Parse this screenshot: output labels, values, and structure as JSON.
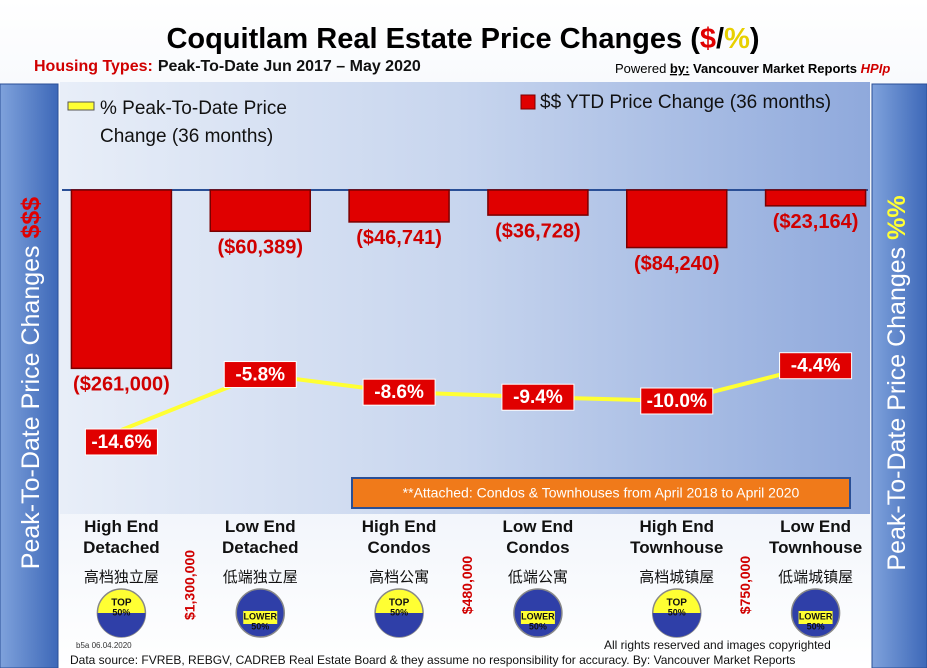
{
  "chart_data": {
    "type": "bar",
    "title_parts": [
      "Coquitlam Real Estate Price Changes (",
      "$",
      "/",
      "%",
      ")"
    ],
    "subtitle_label": "Housing Types:",
    "subtitle": "Peak-To-Date Jun 2017 – May 2020",
    "credit_parts": [
      "Powered ",
      "by:",
      " Vancouver Market Reports ",
      "HPIp"
    ],
    "y_label": {
      "text": "Peak-To-Date Price Changes ",
      "symbol": "$$$"
    },
    "y2_label": {
      "text": "Peak-To-Date  Price  Changes ",
      "symbol": "%%"
    },
    "categories": [
      "High End\nDetached",
      "Low End\nDetached",
      "High End\nCondos",
      "Low End\nCondos",
      "High End\nTownhouse",
      "Low End\nTownhouse"
    ],
    "chinese_labels": [
      "高档独立屋",
      "低端独立屋",
      "高档公寓",
      "低端公寓",
      "高档城镇屋",
      "低端城镇屋"
    ],
    "badges": [
      [
        "TOP",
        "50%"
      ],
      [
        "LOWER",
        "50%"
      ],
      [
        "TOP",
        "50%"
      ],
      [
        "LOWER",
        "50%"
      ],
      [
        "TOP",
        "50%"
      ],
      [
        "LOWER",
        "50%"
      ]
    ],
    "thresholds": [
      "$1,300,000",
      "$480,000",
      "$750,000"
    ],
    "series": [
      {
        "name": "$$ YTD Price Change (36 months)",
        "type": "bar",
        "color": "#e00000",
        "values": [
          -261000,
          -60389,
          -46741,
          -36728,
          -84240,
          -23164
        ],
        "value_labels": [
          "($261,000)",
          "($60,389)",
          "($46,741)",
          "($36,728)",
          "($84,240)",
          "($23,164)"
        ]
      },
      {
        "name": "% Peak-To-Date Price Change (36 months)",
        "type": "line",
        "axis": "y2",
        "color": "#ffff33",
        "values": [
          -14.6,
          -5.8,
          -8.6,
          -9.4,
          -10.0,
          -4.4
        ],
        "value_labels": [
          "-14.6%",
          "-5.8%",
          "-8.6%",
          "-9.4%",
          "-10.0%",
          "-4.4%"
        ]
      }
    ],
    "ylim": [
      -300000,
      0
    ],
    "y2lim": [
      -20,
      0
    ],
    "annotation": "**Attached: Condos & Townhouses from April 2018 to April 2020",
    "stamp": "b5a 06.04.2020",
    "copyright": "All rights reserved and  images copyrighted",
    "source": "Data source: FVREB, REBGV, CADREB Real Estate Board & they assume no responsibility for accuracy. By: Vancouver Market Reports"
  }
}
